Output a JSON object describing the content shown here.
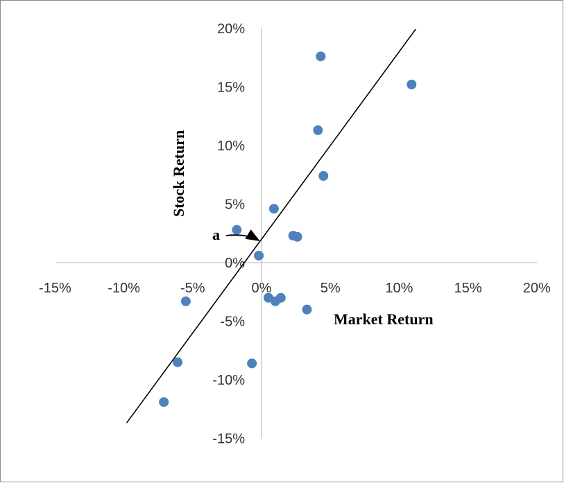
{
  "chart_data": {
    "type": "scatter",
    "title": "",
    "xlabel": "Market Return",
    "ylabel": "Stock Return",
    "xlim": [
      -0.15,
      0.2
    ],
    "ylim": [
      -0.15,
      0.2
    ],
    "x_ticks": [
      -0.15,
      -0.1,
      -0.05,
      0.0,
      0.05,
      0.1,
      0.15,
      0.2
    ],
    "x_tick_labels": [
      "-15%",
      "-10%",
      "-5%",
      "0%",
      "5%",
      "10%",
      "15%",
      "20%"
    ],
    "y_ticks": [
      -0.15,
      -0.1,
      -0.05,
      0.0,
      0.05,
      0.1,
      0.15,
      0.2
    ],
    "y_tick_labels": [
      "-15%",
      "-10%",
      "-5%",
      "0%",
      "5%",
      "10%",
      "15%",
      "20%"
    ],
    "grid": false,
    "legend": "none",
    "series": [
      {
        "points": [
          [
            -0.071,
            -0.119
          ],
          [
            -0.061,
            -0.085
          ],
          [
            -0.055,
            -0.033
          ],
          [
            -0.018,
            0.028
          ],
          [
            -0.007,
            -0.086
          ],
          [
            -0.002,
            0.006
          ],
          [
            0.005,
            -0.03
          ],
          [
            0.009,
            0.046
          ],
          [
            0.01,
            -0.033
          ],
          [
            0.014,
            -0.03
          ],
          [
            0.023,
            0.023
          ],
          [
            0.026,
            0.022
          ],
          [
            0.033,
            -0.04
          ],
          [
            0.041,
            0.113
          ],
          [
            0.043,
            0.176
          ],
          [
            0.045,
            0.074
          ],
          [
            0.109,
            0.152
          ]
        ],
        "color": "#4f81bd"
      }
    ],
    "trendline": {
      "intercept": 0.02,
      "slope": 1.6,
      "x_range": [
        -0.098,
        0.112
      ],
      "color": "#000000"
    },
    "annotations": [
      {
        "text": "a",
        "points_to": [
          0.0,
          0.02
        ]
      }
    ]
  }
}
